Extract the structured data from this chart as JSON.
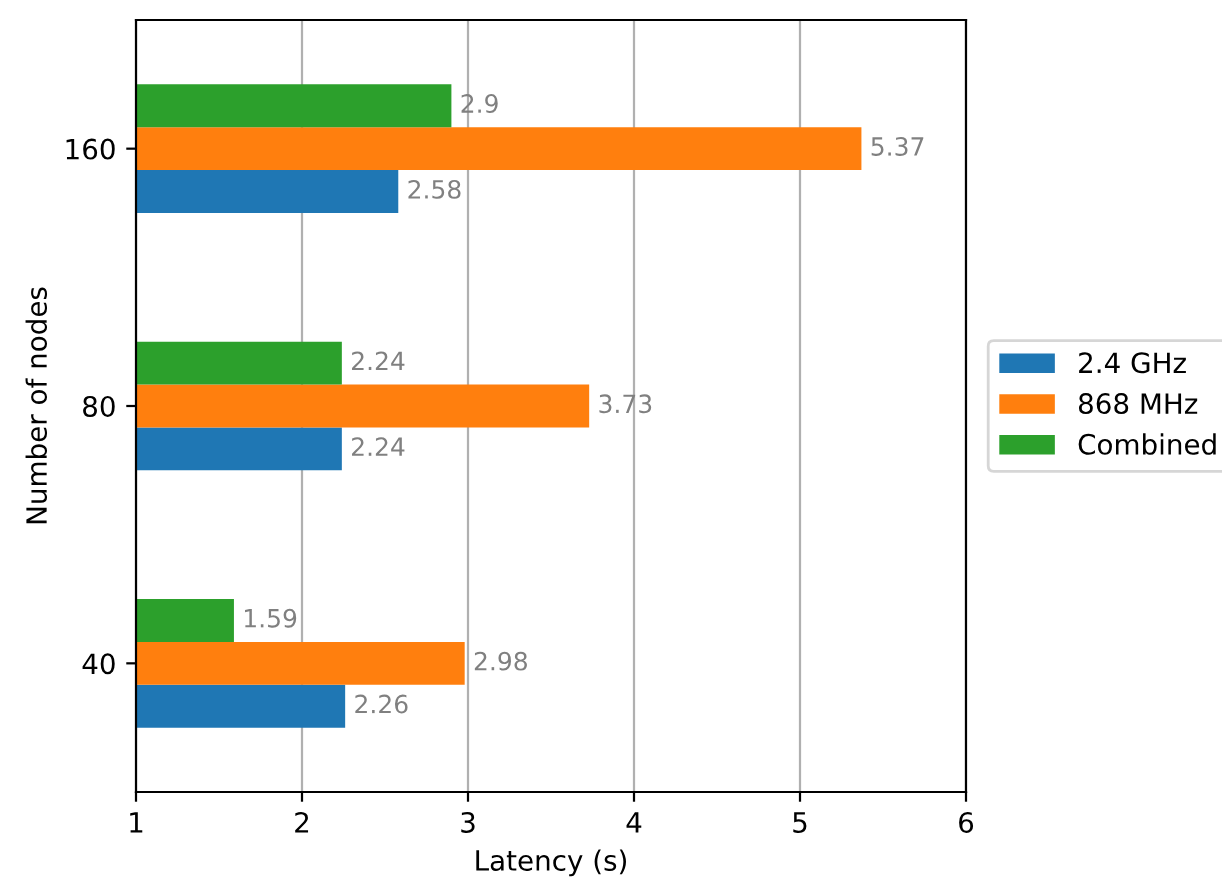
{
  "chart_data": {
    "type": "bar",
    "orientation": "horizontal",
    "xlabel": "Latency (s)",
    "ylabel": "Number of nodes",
    "categories": [
      "160",
      "80",
      "40"
    ],
    "series": [
      {
        "name": "2.4 GHz",
        "color": "#1f77b4",
        "values": [
          2.58,
          2.24,
          2.26
        ]
      },
      {
        "name": "868 MHz",
        "color": "#ff7f0e",
        "values": [
          5.37,
          3.73,
          2.98
        ]
      },
      {
        "name": "Combined",
        "color": "#2ca02c",
        "values": [
          2.9,
          2.24,
          1.59
        ]
      }
    ],
    "xlim": [
      1,
      6
    ],
    "xticks": [
      1,
      2,
      3,
      4,
      5,
      6
    ],
    "grid": "x",
    "legend": "right",
    "data_labels": true
  }
}
